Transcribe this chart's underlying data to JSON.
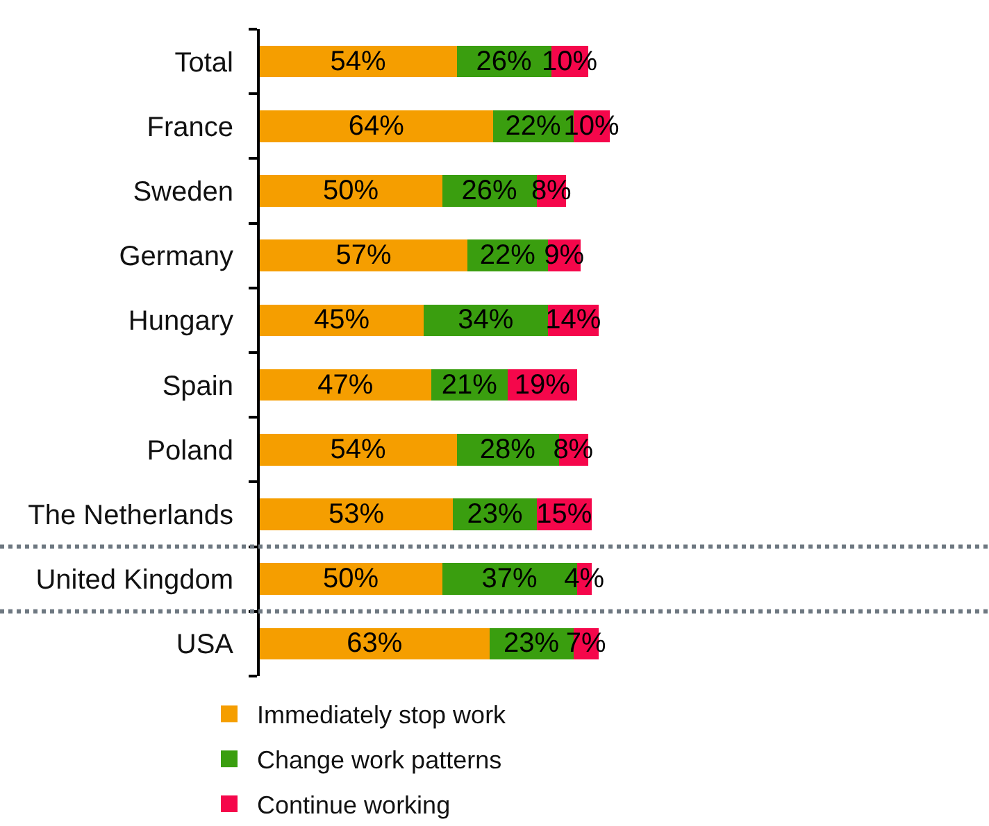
{
  "chart_data": {
    "type": "bar",
    "orientation": "horizontal",
    "stacked": true,
    "tick_labels": "y",
    "legend": "bottom",
    "categories": [
      "Total",
      "France",
      "Sweden",
      "Germany",
      "Hungary",
      "Spain",
      "Poland",
      "The Netherlands",
      "United Kingdom",
      "USA"
    ],
    "series": [
      {
        "name": "Immediately stop work",
        "color": "#f59e00",
        "values": [
          54,
          64,
          50,
          57,
          45,
          47,
          54,
          53,
          50,
          63
        ],
        "value_labels": [
          "54%",
          "64%",
          "50%",
          "57%",
          "45%",
          "47%",
          "54%",
          "53%",
          "50%",
          "63%"
        ]
      },
      {
        "name": "Change work patterns",
        "color": "#3a9e0f",
        "values": [
          26,
          22,
          26,
          22,
          34,
          21,
          28,
          23,
          37,
          23
        ],
        "value_labels": [
          "26%",
          "22%",
          "26%",
          "22%",
          "34%",
          "21%",
          "28%",
          "23%",
          "37%",
          "23%"
        ]
      },
      {
        "name": "Continue working",
        "color": "#f5074b",
        "values": [
          10,
          10,
          8,
          9,
          14,
          19,
          8,
          15,
          4,
          7
        ],
        "value_labels": [
          "10%",
          "10%",
          "8%",
          "9%",
          "14%",
          "19%",
          "8%",
          "15%",
          "4%",
          "7%"
        ]
      }
    ]
  }
}
